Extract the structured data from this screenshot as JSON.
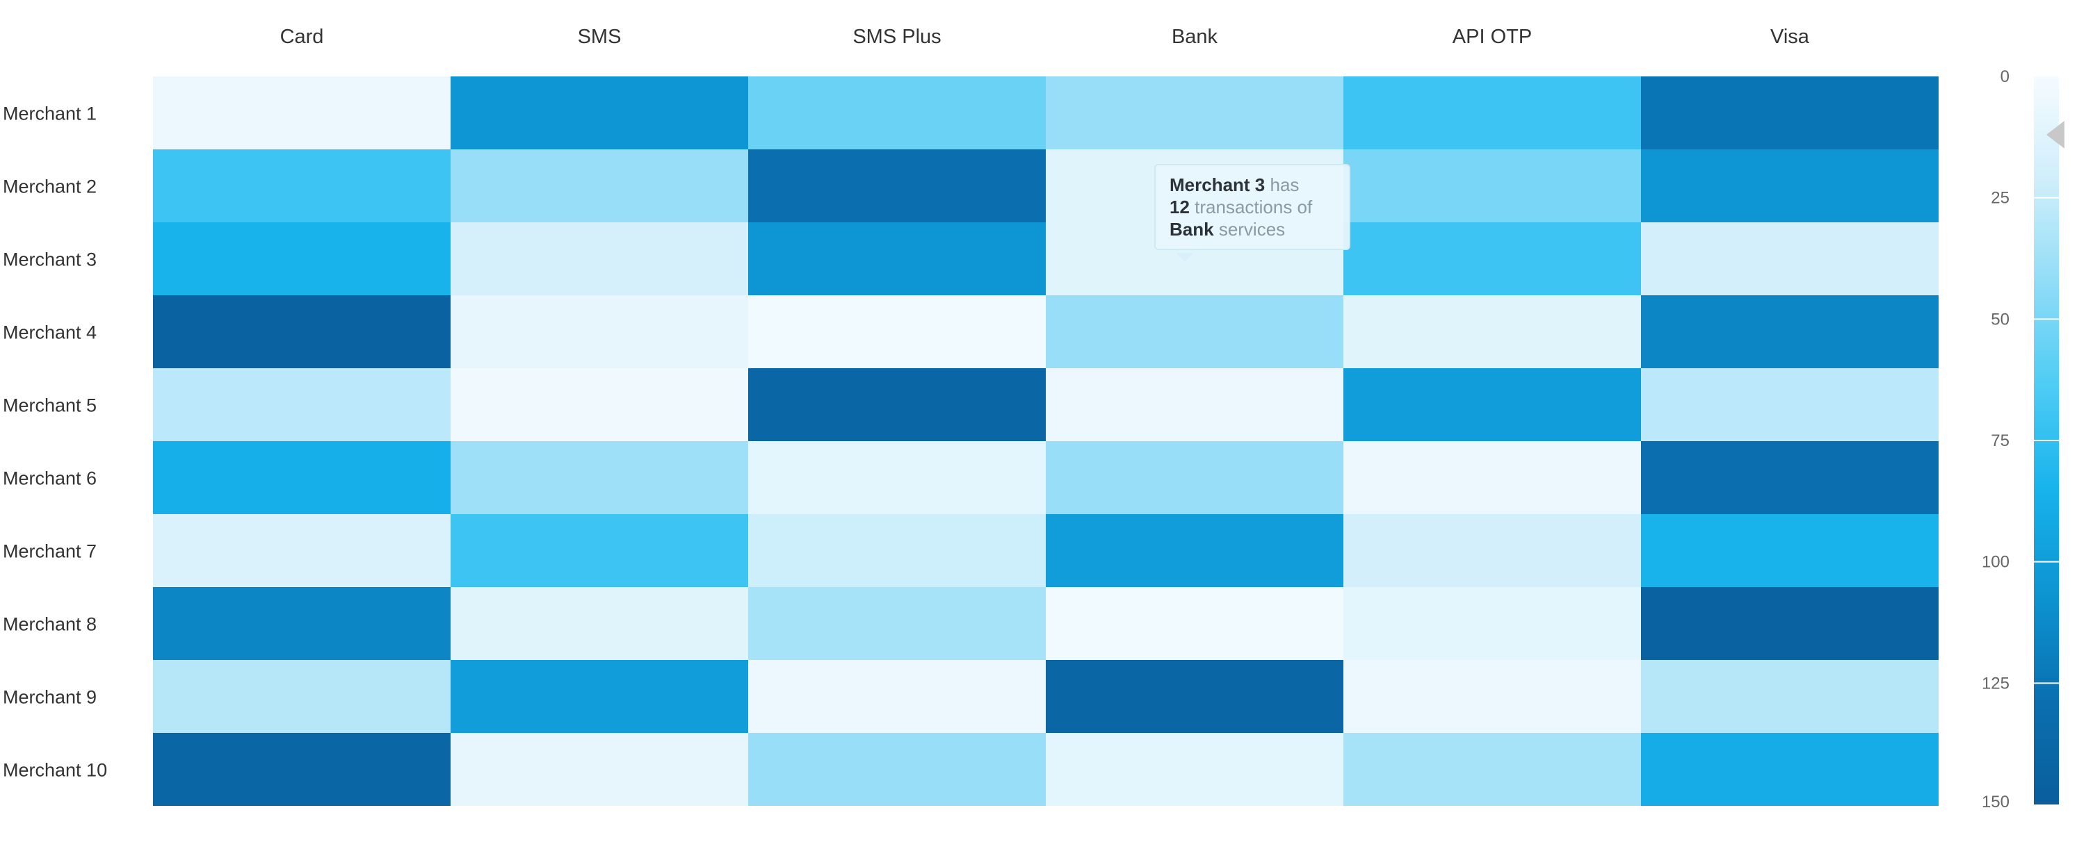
{
  "chart_data": {
    "type": "heatmap",
    "columns": [
      "Card",
      "SMS",
      "SMS Plus",
      "Bank",
      "API OTP",
      "Visa"
    ],
    "rows": [
      "Merchant 1",
      "Merchant 2",
      "Merchant 3",
      "Merchant 4",
      "Merchant 5",
      "Merchant 6",
      "Merchant 7",
      "Merchant 8",
      "Merchant 9",
      "Merchant 10"
    ],
    "values": [
      [
        5,
        105,
        55,
        40,
        70,
        125
      ],
      [
        70,
        40,
        130,
        12,
        50,
        105
      ],
      [
        85,
        18,
        105,
        12,
        70,
        20
      ],
      [
        145,
        8,
        2,
        40,
        12,
        115
      ],
      [
        28,
        3,
        140,
        5,
        100,
        28
      ],
      [
        88,
        38,
        10,
        40,
        5,
        130
      ],
      [
        15,
        70,
        22,
        100,
        20,
        85
      ],
      [
        115,
        12,
        35,
        2,
        10,
        145
      ],
      [
        30,
        100,
        5,
        140,
        5,
        30
      ],
      [
        140,
        8,
        40,
        10,
        35,
        90
      ]
    ],
    "color_scale": {
      "min": 0,
      "max": 150,
      "ticks": [
        0,
        25,
        50,
        75,
        100,
        125,
        150
      ],
      "stops": [
        "#f5fbfe",
        "#cfeefb",
        "#8fdcf7",
        "#4ccbf4",
        "#17b2ec",
        "#0d93d1",
        "#0a6fb0",
        "#0a5e9c"
      ]
    },
    "legend_placement": "right",
    "grid": false
  },
  "tooltip": {
    "row": "Merchant 3",
    "text_has": "has",
    "value": "12",
    "text_transactions": "transactions of",
    "column": "Bank",
    "text_services": "services"
  },
  "colors": {
    "pointer": "#c8c8c8"
  }
}
